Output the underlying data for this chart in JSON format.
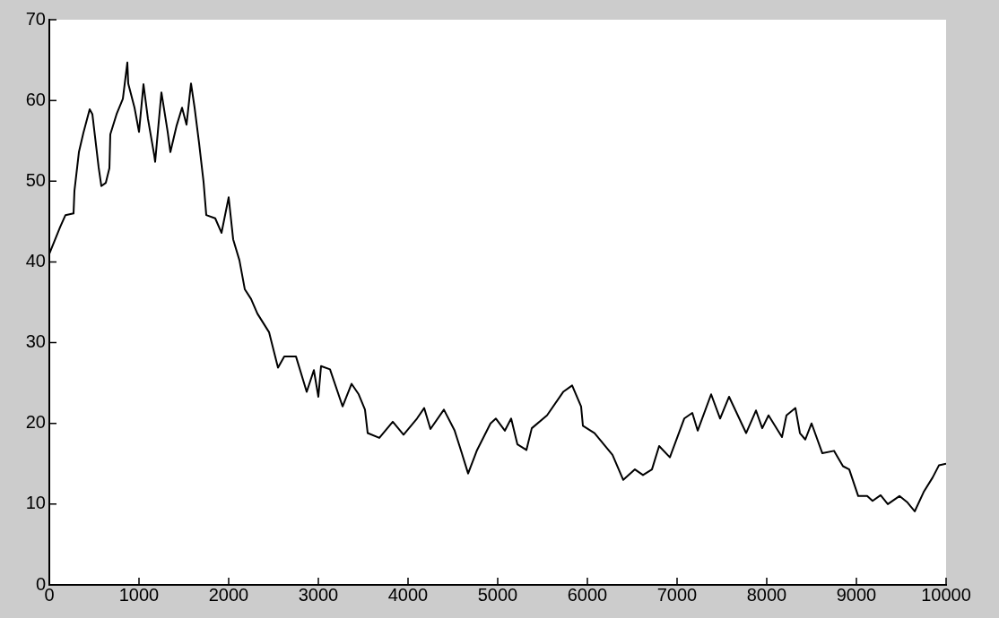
{
  "chart_data": {
    "type": "line",
    "color": "#000000",
    "marker": "none",
    "line_style": "solid",
    "grid": false,
    "legend": false,
    "x": [
      0,
      120,
      180,
      270,
      280,
      330,
      380,
      450,
      480,
      550,
      580,
      630,
      670,
      680,
      750,
      820,
      870,
      880,
      950,
      1000,
      1050,
      1100,
      1170,
      1180,
      1250,
      1320,
      1350,
      1420,
      1480,
      1530,
      1580,
      1620,
      1670,
      1720,
      1750,
      1850,
      1920,
      2000,
      2050,
      2120,
      2180,
      2250,
      2320,
      2450,
      2550,
      2620,
      2750,
      2870,
      2950,
      3000,
      3030,
      3130,
      3270,
      3370,
      3450,
      3520,
      3550,
      3680,
      3830,
      3950,
      4100,
      4180,
      4250,
      4400,
      4520,
      4600,
      4670,
      4770,
      4920,
      4980,
      5080,
      5150,
      5220,
      5320,
      5380,
      5550,
      5730,
      5830,
      5930,
      5950,
      6080,
      6280,
      6400,
      6530,
      6620,
      6720,
      6800,
      6920,
      7080,
      7170,
      7230,
      7380,
      7480,
      7580,
      7770,
      7880,
      7950,
      8020,
      8170,
      8220,
      8320,
      8370,
      8430,
      8500,
      8620,
      8750,
      8850,
      8920,
      9020,
      9120,
      9180,
      9270,
      9350,
      9480,
      9570,
      9650,
      9750,
      9850,
      9920,
      10000
    ],
    "values": [
      41,
      44.3,
      45.8,
      46,
      48.8,
      53.6,
      56,
      58.9,
      58.3,
      51.7,
      49.4,
      49.8,
      51.6,
      55.8,
      58.3,
      60.2,
      64.7,
      62.1,
      59.1,
      56.1,
      62,
      57.7,
      53.2,
      52.4,
      61,
      56.1,
      53.6,
      56.9,
      59.1,
      57,
      62.1,
      59.1,
      54.7,
      49.9,
      45.8,
      45.4,
      43.6,
      48,
      42.8,
      40.2,
      36.6,
      35.4,
      33.6,
      31.3,
      26.9,
      28.3,
      28.3,
      23.9,
      26.6,
      23.3,
      27.1,
      26.7,
      22.1,
      24.9,
      23.6,
      21.7,
      18.8,
      18.2,
      20.2,
      18.6,
      20.6,
      21.9,
      19.3,
      21.7,
      19.1,
      16.3,
      13.8,
      16.7,
      20,
      20.6,
      19.1,
      20.6,
      17.4,
      16.7,
      19.4,
      21,
      23.9,
      24.7,
      22.1,
      19.7,
      18.8,
      16.1,
      13,
      14.3,
      13.6,
      14.3,
      17.2,
      15.8,
      20.6,
      21.3,
      19.1,
      23.6,
      20.6,
      23.3,
      18.8,
      21.6,
      19.4,
      21,
      18.3,
      21,
      21.9,
      18.8,
      18,
      20,
      16.3,
      16.6,
      14.7,
      14.3,
      11,
      11,
      10.4,
      11.1,
      10,
      11,
      10.2,
      9.1,
      11.5,
      13.3,
      14.8,
      15
    ],
    "xlim": [
      0,
      10000
    ],
    "xticks": [
      0,
      1000,
      2000,
      3000,
      4000,
      5000,
      6000,
      7000,
      8000,
      9000,
      10000
    ],
    "ylim": [
      0,
      70
    ],
    "yticks": [
      0,
      10,
      20,
      30,
      40,
      50,
      60,
      70
    ]
  }
}
